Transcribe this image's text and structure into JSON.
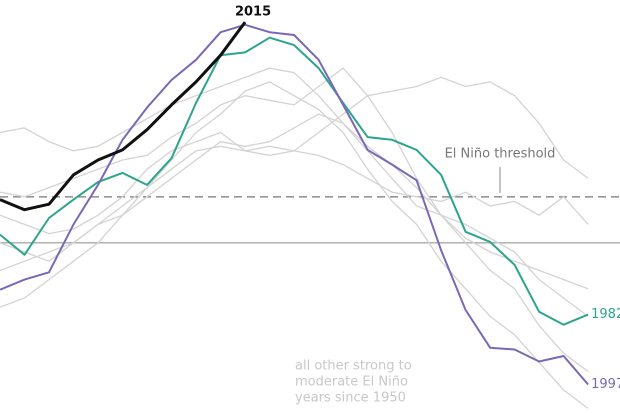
{
  "chart_data": {
    "type": "line",
    "x": [
      0,
      1,
      2,
      3,
      4,
      5,
      6,
      7,
      8,
      9,
      10,
      11,
      12,
      13,
      14,
      15,
      16,
      17,
      18,
      19,
      20,
      21,
      22,
      23,
      24
    ],
    "xlim": [
      0,
      25.3
    ],
    "ylim": [
      -1.85,
      2.64
    ],
    "reference_lines": [
      {
        "value": 0,
        "style": "solid"
      },
      {
        "value": 0.5,
        "style": "dashed",
        "label": "El Niño threshold"
      }
    ],
    "background_series": {
      "color": "#d3d3d3",
      "label": [
        "all other strong to",
        "moderate El Niño",
        "years since 1950"
      ],
      "lines": [
        [
          1.2,
          1.25,
          1.1,
          1.0,
          1.05,
          1.2,
          1.35,
          1.5,
          1.6,
          1.7,
          1.8,
          1.9,
          1.85,
          1.6,
          1.3,
          1.05,
          0.85,
          0.6,
          0.3,
          0.05,
          -0.1,
          -0.2,
          -0.3,
          -0.4,
          -0.5
        ],
        [
          0.3,
          0.2,
          0.1,
          0.15,
          0.3,
          0.5,
          0.8,
          1.0,
          1.1,
          1.2,
          1.0,
          0.95,
          1.0,
          1.2,
          1.4,
          1.6,
          1.65,
          1.7,
          1.8,
          1.7,
          1.75,
          1.6,
          1.3,
          0.9,
          0.7
        ],
        [
          -0.3,
          -0.2,
          -0.1,
          0.0,
          0.2,
          0.3,
          0.5,
          0.7,
          0.9,
          1.1,
          1.05,
          1.1,
          1.25,
          1.4,
          1.3,
          1.0,
          0.7,
          0.4,
          0.3,
          0.2,
          0.05,
          -0.1,
          -0.4,
          -0.6,
          -0.8
        ],
        [
          0.0,
          -0.1,
          -0.2,
          0.0,
          0.2,
          0.4,
          0.6,
          0.9,
          1.2,
          1.4,
          1.65,
          1.75,
          1.6,
          1.45,
          1.2,
          0.8,
          0.45,
          0.2,
          -0.2,
          -0.5,
          -0.8,
          -1.0,
          -1.3,
          -1.6,
          -1.8
        ],
        [
          -0.7,
          -0.6,
          -0.4,
          -0.2,
          0.0,
          0.3,
          0.6,
          0.8,
          1.0,
          1.05,
          1.0,
          1.05,
          1.0,
          0.95,
          0.85,
          0.7,
          0.55,
          0.5,
          0.45,
          0.55,
          0.4,
          0.45,
          0.3,
          0.5,
          0.2
        ],
        [
          0.55,
          0.5,
          0.6,
          0.7,
          0.8,
          0.9,
          0.95,
          1.15,
          1.3,
          1.5,
          1.6,
          1.55,
          1.5,
          1.7,
          1.9,
          1.6,
          1.2,
          0.7,
          0.3,
          0.0,
          -0.3,
          -0.5,
          -0.9,
          -1.2,
          -1.4
        ]
      ]
    },
    "series": [
      {
        "name": "1982",
        "color": "#2ca58d",
        "values": [
          0.09,
          -0.13,
          0.27,
          0.47,
          0.66,
          0.76,
          0.63,
          0.92,
          1.52,
          2.04,
          2.07,
          2.23,
          2.15,
          1.9,
          1.52,
          1.15,
          1.12,
          1.01,
          0.74,
          0.12,
          0.01,
          -0.24,
          -0.75,
          -0.89,
          -0.78
        ]
      },
      {
        "name": "1997",
        "color": "#7b68b5",
        "values": [
          -0.51,
          -0.4,
          -0.32,
          0.2,
          0.63,
          1.12,
          1.47,
          1.77,
          1.99,
          2.29,
          2.37,
          2.29,
          2.26,
          1.99,
          1.5,
          1.01,
          0.85,
          0.68,
          -0.08,
          -0.73,
          -1.14,
          -1.16,
          -1.29,
          -1.23,
          -1.54
        ]
      },
      {
        "name": "2015",
        "color": "#111111",
        "values": [
          0.47,
          0.36,
          0.42,
          0.74,
          0.9,
          1.01,
          1.23,
          1.5,
          1.75,
          2.04,
          2.4,
          null,
          null,
          null,
          null,
          null,
          null,
          null,
          null,
          null,
          null,
          null,
          null,
          null,
          null
        ]
      }
    ]
  }
}
